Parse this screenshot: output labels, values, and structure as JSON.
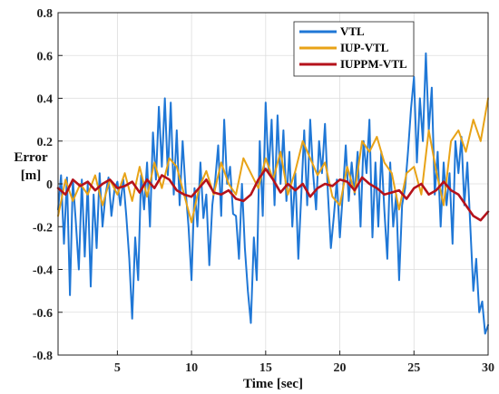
{
  "chart_data": {
    "type": "line",
    "xlabel": "Time [sec]",
    "ylabel_line1": "Error",
    "ylabel_line2": "[m]",
    "xlim": [
      1,
      30
    ],
    "ylim": [
      -0.8,
      0.8
    ],
    "xticks": [
      5,
      10,
      15,
      20,
      25,
      30
    ],
    "yticks": [
      -0.8,
      -0.6,
      -0.4,
      -0.2,
      0,
      0.2,
      0.4,
      0.6,
      0.8
    ],
    "grid": true,
    "legend_position": "top-right",
    "series": [
      {
        "name": "VTL",
        "color": "#1f77d6",
        "x": [
          1,
          1.2,
          1.4,
          1.6,
          1.8,
          2.0,
          2.2,
          2.4,
          2.6,
          2.8,
          3.0,
          3.2,
          3.4,
          3.6,
          3.8,
          4.0,
          4.2,
          4.4,
          4.6,
          4.8,
          5.0,
          5.2,
          5.4,
          5.6,
          5.8,
          6.0,
          6.2,
          6.4,
          6.6,
          6.8,
          7.0,
          7.2,
          7.4,
          7.6,
          7.8,
          8.0,
          8.2,
          8.4,
          8.6,
          8.8,
          9.0,
          9.2,
          9.4,
          9.6,
          9.8,
          10.0,
          10.2,
          10.4,
          10.6,
          10.8,
          11.0,
          11.2,
          11.4,
          11.6,
          11.8,
          12.0,
          12.2,
          12.4,
          12.6,
          12.8,
          13.0,
          13.2,
          13.4,
          13.6,
          13.8,
          14.0,
          14.2,
          14.4,
          14.6,
          14.8,
          15.0,
          15.2,
          15.4,
          15.6,
          15.8,
          16.0,
          16.2,
          16.4,
          16.6,
          16.8,
          17.0,
          17.2,
          17.4,
          17.6,
          17.8,
          18.0,
          18.2,
          18.4,
          18.6,
          18.8,
          19.0,
          19.2,
          19.4,
          19.6,
          19.8,
          20.0,
          20.2,
          20.4,
          20.6,
          20.8,
          21.0,
          21.2,
          21.4,
          21.6,
          21.8,
          22.0,
          22.2,
          22.4,
          22.6,
          22.8,
          23.0,
          23.2,
          23.4,
          23.6,
          23.8,
          24.0,
          24.2,
          24.4,
          24.6,
          24.8,
          25.0,
          25.2,
          25.4,
          25.6,
          25.8,
          26.0,
          26.2,
          26.4,
          26.6,
          26.8,
          27.0,
          27.2,
          27.4,
          27.6,
          27.8,
          28.0,
          28.2,
          28.4,
          28.6,
          28.8,
          29.0,
          29.2,
          29.4,
          29.6,
          29.8,
          30.0
        ],
        "y": [
          -0.12,
          0.04,
          -0.28,
          0.03,
          -0.52,
          0.02,
          -0.18,
          -0.4,
          0.02,
          -0.34,
          0.0,
          -0.48,
          -0.05,
          -0.3,
          0.05,
          -0.2,
          -0.05,
          0.03,
          -0.15,
          -0.03,
          0.01,
          -0.1,
          0.02,
          -0.15,
          -0.35,
          -0.63,
          -0.25,
          -0.45,
          0.04,
          -0.12,
          0.1,
          -0.2,
          0.24,
          0.02,
          0.36,
          0.08,
          0.4,
          0.04,
          0.38,
          -0.05,
          0.25,
          -0.1,
          0.2,
          -0.03,
          -0.2,
          -0.45,
          -0.02,
          -0.2,
          0.1,
          -0.16,
          -0.05,
          -0.38,
          -0.1,
          0.02,
          0.18,
          -0.15,
          0.3,
          0.0,
          0.08,
          -0.14,
          -0.15,
          -0.35,
          0.0,
          -0.3,
          -0.5,
          -0.65,
          -0.25,
          -0.45,
          0.2,
          -0.15,
          0.38,
          0.05,
          0.3,
          -0.1,
          0.32,
          0.0,
          0.25,
          -0.08,
          0.15,
          -0.2,
          0.05,
          -0.35,
          -0.05,
          0.25,
          -0.1,
          0.3,
          0.05,
          -0.12,
          0.2,
          0.05,
          0.28,
          -0.05,
          -0.3,
          -0.15,
          0.02,
          -0.25,
          -0.05,
          0.18,
          -0.08,
          0.1,
          -0.05,
          0.15,
          -0.2,
          0.2,
          0.05,
          0.3,
          -0.25,
          0.1,
          -0.2,
          0.15,
          -0.12,
          -0.35,
          0.1,
          -0.2,
          -0.05,
          -0.45,
          -0.1,
          -0.02,
          0.15,
          0.35,
          0.5,
          0.1,
          0.4,
          0.2,
          0.61,
          0.25,
          0.45,
          -0.05,
          0.15,
          -0.2,
          0.1,
          -0.1,
          0.05,
          -0.28,
          0.2,
          0.05,
          0.22,
          -0.1,
          0.1,
          -0.2,
          -0.5,
          -0.35,
          -0.6,
          -0.55,
          -0.7,
          -0.66
        ]
      },
      {
        "name": "IUP-VTL",
        "color": "#e8a317",
        "x": [
          1,
          1.5,
          2.0,
          2.5,
          3.0,
          3.5,
          4.0,
          4.5,
          5.0,
          5.5,
          6.0,
          6.5,
          7.0,
          7.5,
          8.0,
          8.5,
          9.0,
          9.5,
          10.0,
          10.5,
          11.0,
          11.5,
          12.0,
          12.5,
          13.0,
          13.5,
          14.0,
          14.5,
          15.0,
          15.5,
          16.0,
          16.5,
          17.0,
          17.5,
          18.0,
          18.5,
          19.0,
          19.5,
          20.0,
          20.5,
          21.0,
          21.5,
          22.0,
          22.5,
          23.0,
          23.5,
          24.0,
          24.5,
          25.0,
          25.5,
          26.0,
          26.5,
          27.0,
          27.5,
          28.0,
          28.5,
          29.0,
          29.5,
          30.0
        ],
        "y": [
          -0.15,
          0.02,
          -0.08,
          0.0,
          -0.05,
          0.04,
          -0.1,
          0.02,
          -0.05,
          0.05,
          -0.08,
          0.08,
          -0.06,
          0.1,
          -0.02,
          0.12,
          0.08,
          -0.05,
          -0.18,
          -0.02,
          0.06,
          -0.05,
          0.1,
          0.0,
          -0.05,
          0.12,
          0.05,
          -0.02,
          0.12,
          0.02,
          0.15,
          -0.05,
          0.06,
          0.2,
          0.12,
          0.04,
          0.1,
          -0.06,
          -0.1,
          0.08,
          -0.04,
          0.2,
          0.15,
          0.22,
          0.1,
          0.05,
          -0.12,
          0.05,
          0.08,
          -0.05,
          0.25,
          0.06,
          -0.1,
          0.2,
          0.25,
          0.15,
          0.3,
          0.2,
          0.4
        ]
      },
      {
        "name": "IUPPM-VTL",
        "color": "#b5121b",
        "x": [
          1,
          1.5,
          2.0,
          2.5,
          3.0,
          3.5,
          4.0,
          4.5,
          5.0,
          5.5,
          6.0,
          6.5,
          7.0,
          7.5,
          8.0,
          8.5,
          9.0,
          9.5,
          10.0,
          10.5,
          11.0,
          11.5,
          12.0,
          12.5,
          13.0,
          13.5,
          14.0,
          14.5,
          15.0,
          15.5,
          16.0,
          16.5,
          17.0,
          17.5,
          18.0,
          18.5,
          19.0,
          19.5,
          20.0,
          20.5,
          21.0,
          21.5,
          22.0,
          22.5,
          23.0,
          23.5,
          24.0,
          24.5,
          25.0,
          25.5,
          26.0,
          26.5,
          27.0,
          27.5,
          28.0,
          28.5,
          29.0,
          29.5,
          30.0
        ],
        "y": [
          -0.02,
          -0.05,
          0.02,
          -0.01,
          0.01,
          -0.03,
          0.0,
          0.02,
          -0.02,
          -0.01,
          0.01,
          -0.04,
          0.02,
          -0.02,
          0.04,
          0.02,
          -0.03,
          -0.05,
          -0.06,
          -0.02,
          0.02,
          -0.04,
          -0.05,
          -0.03,
          -0.07,
          -0.08,
          -0.05,
          0.02,
          0.07,
          0.02,
          -0.04,
          0.0,
          -0.03,
          0.0,
          -0.06,
          -0.02,
          0.0,
          -0.01,
          0.02,
          0.01,
          -0.03,
          0.03,
          0.0,
          -0.02,
          -0.05,
          -0.04,
          -0.03,
          -0.07,
          -0.02,
          0.0,
          -0.05,
          -0.03,
          0.01,
          -0.03,
          -0.05,
          -0.1,
          -0.15,
          -0.17,
          -0.13
        ]
      }
    ]
  }
}
